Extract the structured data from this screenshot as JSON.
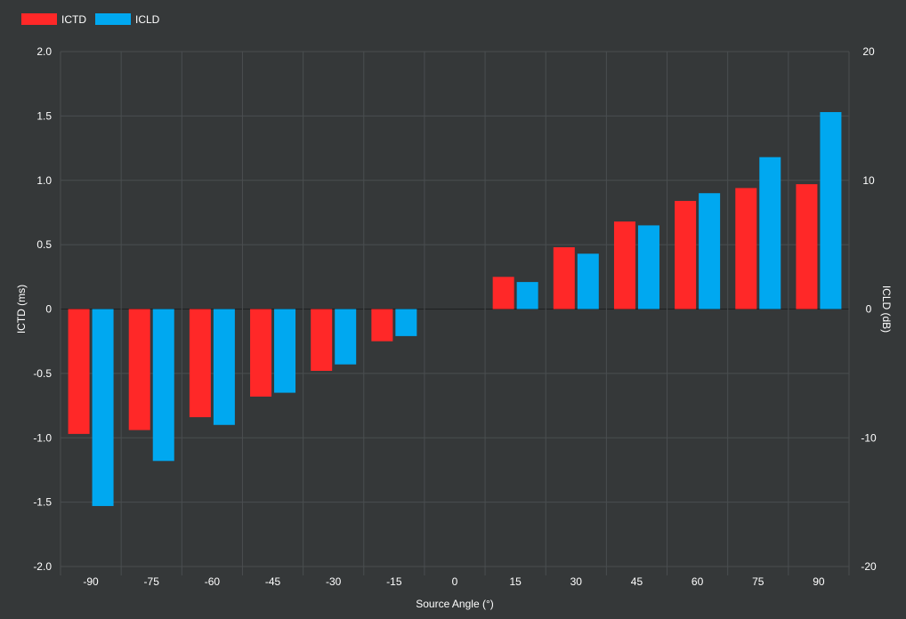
{
  "chart_data": {
    "type": "bar",
    "categories": [
      "-90",
      "-75",
      "-60",
      "-45",
      "-30",
      "-15",
      "0",
      "15",
      "30",
      "45",
      "60",
      "75",
      "90"
    ],
    "series": [
      {
        "name": "ICTD",
        "axis": "left",
        "color": "#ff2828",
        "values": [
          -0.97,
          -0.94,
          -0.84,
          -0.68,
          -0.48,
          -0.25,
          0,
          0.25,
          0.48,
          0.68,
          0.84,
          0.94,
          0.97
        ]
      },
      {
        "name": "ICLD",
        "axis": "right",
        "color": "#00a8f0",
        "values": [
          -15.3,
          -11.8,
          -9.0,
          -6.5,
          -4.3,
          -2.1,
          0,
          2.1,
          4.3,
          6.5,
          9.0,
          11.8,
          15.3
        ]
      }
    ],
    "xlabel": "Source Angle (°)",
    "ylabel_left": "ICTD (ms)",
    "ylabel_right": "ICLD (dB)",
    "ylim_left": [
      -2.0,
      2.0
    ],
    "ylim_right": [
      -20,
      20
    ],
    "yticks_left": [
      "-2.0",
      "-1.5",
      "-1.0",
      "-0.5",
      "0",
      "0.5",
      "1.0",
      "1.5",
      "2.0"
    ],
    "yticks_right": [
      "-20",
      "-10",
      "0",
      "10",
      "20"
    ],
    "grid": true,
    "legend_position": "top-left"
  }
}
